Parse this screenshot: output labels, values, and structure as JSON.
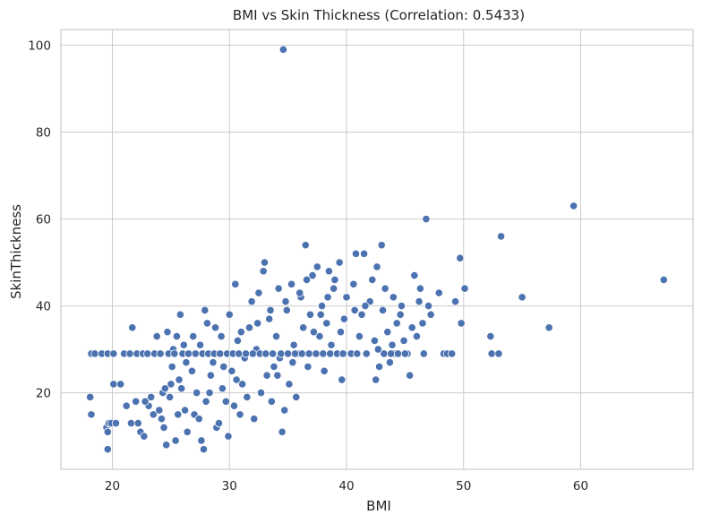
{
  "chart_data": {
    "type": "scatter",
    "title": "BMI vs Skin Thickness (Correlation: 0.5433)",
    "xlabel": "BMI",
    "ylabel": "SkinThickness",
    "xlim": [
      15.6,
      69.6
    ],
    "ylim": [
      2.4,
      103.6
    ],
    "x_ticks": [
      20,
      30,
      40,
      50,
      60
    ],
    "y_ticks": [
      20,
      40,
      60,
      80,
      100
    ],
    "x_tick_labels": [
      "20",
      "30",
      "40",
      "50",
      "60"
    ],
    "y_tick_labels": [
      "20",
      "40",
      "60",
      "80",
      "100"
    ],
    "grid": true,
    "marker_color": "#4c72b0",
    "marker_edge_color": "#ffffff",
    "grid_color": "#cccccc",
    "spine_color": "#cccccc",
    "points": [
      [
        18.2,
        29
      ],
      [
        18.5,
        29
      ],
      [
        19.1,
        29
      ],
      [
        19.6,
        29
      ],
      [
        20.1,
        29
      ],
      [
        18.1,
        19
      ],
      [
        18.2,
        15
      ],
      [
        19.5,
        12
      ],
      [
        19.7,
        13
      ],
      [
        19.6,
        7
      ],
      [
        19.6,
        11
      ],
      [
        19.9,
        13
      ],
      [
        20.3,
        13
      ],
      [
        20.1,
        22
      ],
      [
        20.7,
        22
      ],
      [
        21.2,
        17
      ],
      [
        21.6,
        13
      ],
      [
        21.7,
        35
      ],
      [
        22.0,
        18
      ],
      [
        22.2,
        13
      ],
      [
        22.4,
        11
      ],
      [
        22.7,
        10
      ],
      [
        23.1,
        17
      ],
      [
        23.5,
        15
      ],
      [
        23.8,
        33
      ],
      [
        24.0,
        16
      ],
      [
        24.2,
        14
      ],
      [
        24.3,
        20
      ],
      [
        24.4,
        12
      ],
      [
        24.6,
        8
      ],
      [
        24.7,
        34
      ],
      [
        24.9,
        19
      ],
      [
        25.0,
        22
      ],
      [
        25.1,
        26
      ],
      [
        25.2,
        30
      ],
      [
        25.4,
        9
      ],
      [
        25.5,
        33
      ],
      [
        25.6,
        15
      ],
      [
        25.8,
        38
      ],
      [
        25.9,
        21
      ],
      [
        26.1,
        31
      ],
      [
        26.2,
        16
      ],
      [
        26.4,
        11
      ],
      [
        26.6,
        29
      ],
      [
        26.8,
        25
      ],
      [
        27.0,
        15
      ],
      [
        27.2,
        20
      ],
      [
        27.4,
        14
      ],
      [
        27.6,
        9
      ],
      [
        27.8,
        7
      ],
      [
        27.9,
        39
      ],
      [
        28.1,
        36
      ],
      [
        28.3,
        20
      ],
      [
        28.4,
        24
      ],
      [
        28.6,
        27
      ],
      [
        28.8,
        35
      ],
      [
        28.9,
        12
      ],
      [
        29.1,
        13
      ],
      [
        29.3,
        33
      ],
      [
        29.5,
        26
      ],
      [
        29.7,
        18
      ],
      [
        29.9,
        10
      ],
      [
        30.0,
        38
      ],
      [
        30.2,
        25
      ],
      [
        30.4,
        17
      ],
      [
        30.5,
        45
      ],
      [
        30.7,
        32
      ],
      [
        30.9,
        15
      ],
      [
        31.1,
        22
      ],
      [
        31.3,
        28
      ],
      [
        31.5,
        19
      ],
      [
        31.7,
        35
      ],
      [
        31.9,
        41
      ],
      [
        32.1,
        14
      ],
      [
        32.3,
        30
      ],
      [
        32.5,
        43
      ],
      [
        32.7,
        20
      ],
      [
        32.9,
        48
      ],
      [
        33.0,
        50
      ],
      [
        33.2,
        24
      ],
      [
        33.4,
        37
      ],
      [
        33.6,
        18
      ],
      [
        33.8,
        26
      ],
      [
        34.0,
        33
      ],
      [
        34.2,
        44
      ],
      [
        34.3,
        28
      ],
      [
        34.5,
        11
      ],
      [
        34.6,
        99
      ],
      [
        34.7,
        16
      ],
      [
        34.9,
        39
      ],
      [
        35.1,
        22
      ],
      [
        35.3,
        45
      ],
      [
        35.5,
        31
      ],
      [
        35.7,
        19
      ],
      [
        35.9,
        29
      ],
      [
        36.1,
        42
      ],
      [
        36.3,
        35
      ],
      [
        36.5,
        54
      ],
      [
        36.7,
        26
      ],
      [
        36.9,
        38
      ],
      [
        37.1,
        47
      ],
      [
        37.3,
        29
      ],
      [
        37.5,
        49
      ],
      [
        37.7,
        33
      ],
      [
        37.9,
        40
      ],
      [
        38.1,
        25
      ],
      [
        38.3,
        36
      ],
      [
        38.5,
        48
      ],
      [
        38.7,
        31
      ],
      [
        38.9,
        44
      ],
      [
        39.1,
        29
      ],
      [
        39.4,
        50
      ],
      [
        39.6,
        23
      ],
      [
        39.8,
        37
      ],
      [
        40.0,
        42
      ],
      [
        40.3,
        29
      ],
      [
        40.6,
        45
      ],
      [
        40.8,
        52
      ],
      [
        41.1,
        33
      ],
      [
        41.3,
        38
      ],
      [
        41.5,
        52
      ],
      [
        41.7,
        29
      ],
      [
        42.0,
        41
      ],
      [
        42.2,
        46
      ],
      [
        42.4,
        32
      ],
      [
        42.5,
        23
      ],
      [
        42.6,
        49
      ],
      [
        42.8,
        26
      ],
      [
        43.0,
        54
      ],
      [
        43.1,
        39
      ],
      [
        43.3,
        44
      ],
      [
        43.5,
        34
      ],
      [
        43.7,
        27
      ],
      [
        43.9,
        31
      ],
      [
        44.1,
        29
      ],
      [
        44.3,
        36
      ],
      [
        44.6,
        38
      ],
      [
        44.9,
        32
      ],
      [
        45.2,
        29
      ],
      [
        45.4,
        24
      ],
      [
        45.6,
        35
      ],
      [
        45.8,
        47
      ],
      [
        46.0,
        33
      ],
      [
        46.2,
        41
      ],
      [
        46.5,
        36
      ],
      [
        46.8,
        60
      ],
      [
        47.0,
        40
      ],
      [
        47.9,
        43
      ],
      [
        48.3,
        29
      ],
      [
        48.6,
        29
      ],
      [
        49.0,
        29
      ],
      [
        49.3,
        41
      ],
      [
        49.7,
        51
      ],
      [
        49.8,
        36
      ],
      [
        50.1,
        44
      ],
      [
        52.3,
        33
      ],
      [
        52.4,
        29
      ],
      [
        53.0,
        29
      ],
      [
        53.2,
        56
      ],
      [
        55.0,
        42
      ],
      [
        57.3,
        35
      ],
      [
        59.4,
        63
      ],
      [
        67.1,
        46
      ],
      [
        21.0,
        29
      ],
      [
        21.5,
        29
      ],
      [
        22.1,
        29
      ],
      [
        22.6,
        29
      ],
      [
        23.0,
        29
      ],
      [
        23.6,
        29
      ],
      [
        24.1,
        29
      ],
      [
        24.8,
        29
      ],
      [
        25.3,
        29
      ],
      [
        26.0,
        29
      ],
      [
        26.5,
        29
      ],
      [
        27.1,
        29
      ],
      [
        27.7,
        29
      ],
      [
        28.2,
        29
      ],
      [
        28.7,
        29
      ],
      [
        29.2,
        29
      ],
      [
        29.8,
        29
      ],
      [
        30.3,
        29
      ],
      [
        30.8,
        29
      ],
      [
        31.4,
        29
      ],
      [
        32.0,
        29
      ],
      [
        32.6,
        29
      ],
      [
        33.1,
        29
      ],
      [
        33.7,
        29
      ],
      [
        34.4,
        29
      ],
      [
        35.0,
        29
      ],
      [
        35.6,
        29
      ],
      [
        36.2,
        29
      ],
      [
        36.8,
        29
      ],
      [
        37.4,
        29
      ],
      [
        38.0,
        29
      ],
      [
        38.6,
        29
      ],
      [
        39.2,
        29
      ],
      [
        39.7,
        29
      ],
      [
        40.4,
        29
      ],
      [
        40.9,
        29
      ],
      [
        43.2,
        29
      ],
      [
        43.8,
        29
      ],
      [
        44.4,
        29
      ],
      [
        45.0,
        29
      ],
      [
        46.6,
        29
      ],
      [
        22.8,
        18
      ],
      [
        23.3,
        19
      ],
      [
        24.5,
        21
      ],
      [
        25.7,
        23
      ],
      [
        26.3,
        27
      ],
      [
        26.9,
        33
      ],
      [
        27.5,
        31
      ],
      [
        28.0,
        18
      ],
      [
        29.4,
        21
      ],
      [
        30.6,
        23
      ],
      [
        31.0,
        34
      ],
      [
        32.4,
        36
      ],
      [
        33.5,
        39
      ],
      [
        34.1,
        24
      ],
      [
        34.8,
        41
      ],
      [
        35.4,
        27
      ],
      [
        36.0,
        43
      ],
      [
        36.6,
        46
      ],
      [
        37.2,
        34
      ],
      [
        37.8,
        38
      ],
      [
        38.4,
        42
      ],
      [
        39.0,
        46
      ],
      [
        39.5,
        34
      ],
      [
        40.7,
        39
      ],
      [
        41.6,
        40
      ],
      [
        42.7,
        30
      ],
      [
        44.0,
        42
      ],
      [
        44.7,
        40
      ],
      [
        46.3,
        44
      ],
      [
        47.2,
        38
      ]
    ]
  }
}
